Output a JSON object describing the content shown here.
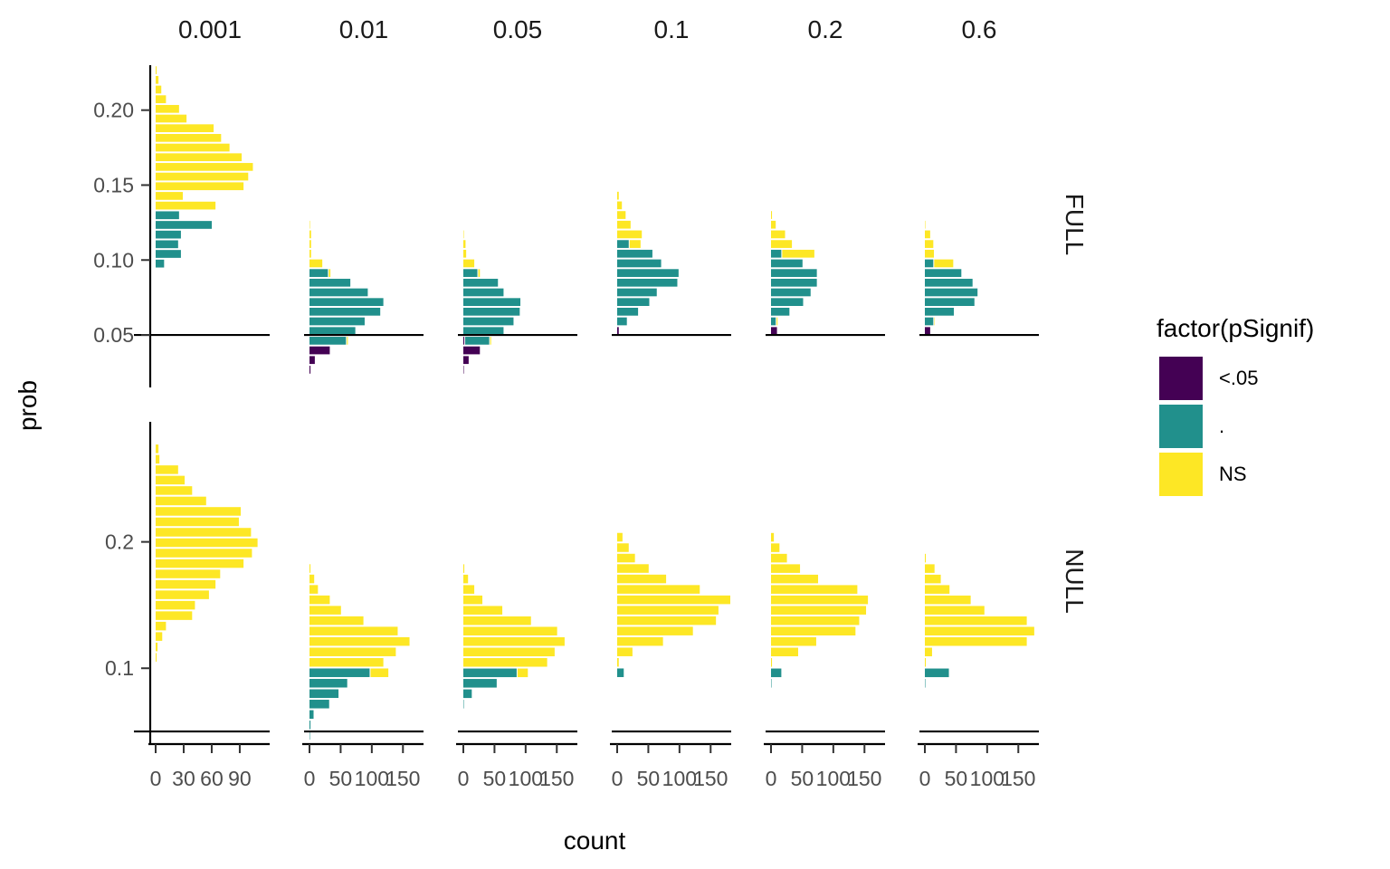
{
  "chart_data": {
    "type": "bar",
    "orientation": "horizontal",
    "xlabel": "count",
    "ylabel": "prob",
    "col_facets": [
      "0.001",
      "0.01",
      "0.05",
      "0.1",
      "0.2",
      "0.6"
    ],
    "row_facets": [
      "FULL",
      "NULL"
    ],
    "reference_line": 0.05,
    "x_ticks": {
      "0.001": [
        0,
        30,
        60,
        90
      ],
      "other": [
        0,
        50,
        100,
        150
      ]
    },
    "x_max": {
      "0.001": 122,
      "other": 183
    },
    "rows": {
      "FULL": {
        "ylim": [
          0.015,
          0.23
        ],
        "y_ticks": [
          0.05,
          0.1,
          0.15,
          0.2
        ],
        "y_tick_labels": [
          "0.05",
          "0.10",
          "0.15",
          "0.20"
        ],
        "bin_width": 0.00645,
        "facets": {
          "0.001": {
            "y0": 0.0944,
            "bins": [
              [
                0,
                10
              ],
              [
                0,
                28
              ],
              [
                0,
                25
              ],
              [
                0,
                28
              ],
              [
                0,
                61
              ],
              [
                0,
                26
              ],
              [
                0,
                65
              ],
              [
                0,
                30
              ],
              [
                0,
                95
              ],
              [
                0,
                100
              ],
              [
                0,
                105
              ],
              [
                0,
                93
              ],
              [
                0,
                80
              ],
              [
                0,
                71
              ],
              [
                0,
                63
              ],
              [
                0,
                34
              ],
              [
                0,
                26
              ],
              [
                0,
                12
              ],
              [
                0,
                7
              ],
              [
                0,
                4
              ],
              [
                0,
                2
              ]
            ],
            "split_index": 1
          },
          "0.01": {
            "y0": 0.0236,
            "bins": [
              [
                3,
                0,
                0
              ],
              [
                10,
                0,
                0
              ],
              [
                34,
                0,
                0
              ],
              [
                0,
                60,
                3
              ],
              [
                0,
                75,
                0
              ],
              [
                0,
                90,
                0
              ],
              [
                0,
                115,
                0
              ],
              [
                0,
                120,
                0
              ],
              [
                0,
                95,
                0
              ],
              [
                0,
                67,
                0
              ],
              [
                0,
                31,
                4
              ],
              [
                0,
                0,
                22
              ],
              [
                0,
                0,
                4
              ],
              [
                0,
                0,
                4
              ],
              [
                0,
                0,
                4
              ],
              [
                0,
                0,
                2
              ]
            ]
          },
          "0.05": {
            "y0": 0.0236,
            "bins": [
              [
                2,
                0,
                0
              ],
              [
                10,
                0,
                0
              ],
              [
                28,
                0,
                0
              ],
              [
                3,
                40,
                3
              ],
              [
                0,
                66,
                0
              ],
              [
                0,
                82,
                0
              ],
              [
                0,
                92,
                0
              ],
              [
                0,
                93,
                0
              ],
              [
                0,
                66,
                0
              ],
              [
                0,
                57,
                0
              ],
              [
                0,
                24,
                4
              ],
              [
                0,
                0,
                19
              ],
              [
                0,
                0,
                6
              ],
              [
                0,
                0,
                5
              ],
              [
                0,
                0,
                2
              ]
            ]
          },
          "0.1": {
            "y0": 0.0494,
            "bins": [
              [
                4,
                0,
                0
              ],
              [
                0,
                17,
                0
              ],
              [
                0,
                35,
                0
              ],
              [
                0,
                53,
                0
              ],
              [
                0,
                65,
                0
              ],
              [
                0,
                98,
                0
              ],
              [
                0,
                100,
                0
              ],
              [
                0,
                72,
                0
              ],
              [
                0,
                58,
                0
              ],
              [
                0,
                20,
                19
              ],
              [
                0,
                0,
                41
              ],
              [
                0,
                0,
                23
              ],
              [
                0,
                0,
                15
              ],
              [
                0,
                0,
                9
              ],
              [
                0,
                0,
                4
              ]
            ]
          },
          "0.2": {
            "y0": 0.0494,
            "bins": [
              [
                11,
                0,
                0
              ],
              [
                0,
                9,
                3
              ],
              [
                0,
                31,
                0
              ],
              [
                0,
                53,
                0
              ],
              [
                0,
                65,
                0
              ],
              [
                0,
                75,
                0
              ],
              [
                0,
                75,
                0
              ],
              [
                0,
                52,
                0
              ],
              [
                0,
                18,
                53
              ],
              [
                0,
                0,
                35
              ],
              [
                0,
                0,
                24
              ],
              [
                0,
                0,
                9
              ],
              [
                0,
                0,
                3
              ]
            ]
          },
          "0.6": {
            "y0": 0.0494,
            "bins": [
              [
                10,
                0,
                0
              ],
              [
                0,
                15,
                2
              ],
              [
                0,
                48,
                0
              ],
              [
                0,
                81,
                0
              ],
              [
                0,
                86,
                0
              ],
              [
                0,
                78,
                0
              ],
              [
                0,
                60,
                0
              ],
              [
                0,
                15,
                32
              ],
              [
                0,
                0,
                16
              ],
              [
                0,
                0,
                15
              ],
              [
                0,
                0,
                10
              ],
              [
                0,
                0,
                2
              ]
            ]
          }
        }
      },
      "NULL": {
        "ylim": [
          0.04,
          0.295
        ],
        "y_ticks": [
          0.1,
          0.2
        ],
        "y_tick_labels": [
          "0.1",
          "0.2"
        ],
        "bin_width": 0.00825,
        "facets": {
          "0.001": {
            "y0": 0.1045,
            "bins": [
              [
                2
              ],
              [
                3
              ],
              [
                8
              ],
              [
                12
              ],
              [
                40
              ],
              [
                43
              ],
              [
                58
              ],
              [
                65
              ],
              [
                70
              ],
              [
                95
              ],
              [
                104
              ],
              [
                110
              ],
              [
                103
              ],
              [
                90
              ],
              [
                92
              ],
              [
                55
              ],
              [
                40
              ],
              [
                32
              ],
              [
                25
              ],
              [
                5
              ],
              [
                4
              ]
            ]
          },
          "0.01": {
            "y0": 0.0428,
            "bins": [
              [
                1,
                0
              ],
              [
                3,
                0
              ],
              [
                8,
                0
              ],
              [
                33,
                0
              ],
              [
                48,
                0
              ],
              [
                62,
                0
              ],
              [
                98,
                30
              ],
              [
                0,
                120
              ],
              [
                0,
                140
              ],
              [
                0,
                162
              ],
              [
                0,
                143
              ],
              [
                0,
                88
              ],
              [
                0,
                52
              ],
              [
                0,
                34
              ],
              [
                0,
                15
              ],
              [
                0,
                9
              ],
              [
                0,
                3
              ]
            ]
          },
          "0.05": {
            "y0": 0.0675,
            "bins": [
              [
                2,
                0
              ],
              [
                15,
                0
              ],
              [
                55,
                0
              ],
              [
                87,
                18
              ],
              [
                0,
                136
              ],
              [
                0,
                148
              ],
              [
                0,
                164
              ],
              [
                0,
                152
              ],
              [
                0,
                110
              ],
              [
                0,
                64
              ],
              [
                0,
                32
              ],
              [
                0,
                19
              ],
              [
                0,
                9
              ],
              [
                0,
                3
              ]
            ]
          },
          "0.1": {
            "y0": 0.0923,
            "bins": [
              [
                12,
                0
              ],
              [
                0,
                4
              ],
              [
                0,
                26
              ],
              [
                0,
                75
              ],
              [
                0,
                123
              ],
              [
                0,
                160
              ],
              [
                0,
                164
              ],
              [
                0,
                183
              ],
              [
                0,
                134
              ],
              [
                0,
                80
              ],
              [
                0,
                52
              ],
              [
                0,
                30
              ],
              [
                0,
                20
              ],
              [
                0,
                10
              ]
            ]
          },
          "0.2": {
            "y0": 0.084,
            "bins": [
              [
                2,
                0
              ],
              [
                18,
                0
              ],
              [
                0,
                3
              ],
              [
                0,
                45
              ],
              [
                0,
                74
              ],
              [
                0,
                137
              ],
              [
                0,
                143
              ],
              [
                0,
                154
              ],
              [
                0,
                157
              ],
              [
                0,
                140
              ],
              [
                0,
                77
              ],
              [
                0,
                48
              ],
              [
                0,
                27
              ],
              [
                0,
                15
              ],
              [
                0,
                6
              ]
            ]
          },
          "0.6": {
            "y0": 0.084,
            "bins": [
              [
                1,
                0
              ],
              [
                40,
                0
              ],
              [
                0,
                3
              ],
              [
                0,
                13
              ],
              [
                0,
                165
              ],
              [
                0,
                177
              ],
              [
                0,
                165
              ],
              [
                0,
                97
              ],
              [
                0,
                75
              ],
              [
                0,
                41
              ],
              [
                0,
                27
              ],
              [
                0,
                17
              ],
              [
                0,
                3
              ]
            ]
          }
        }
      }
    },
    "legend": {
      "title": "factor(pSignif)",
      "entries": [
        {
          "label": "<.05",
          "color": "#440154"
        },
        {
          "label": ".",
          "color": "#21908C"
        },
        {
          "label": "NS",
          "color": "#FDE725"
        }
      ]
    }
  }
}
